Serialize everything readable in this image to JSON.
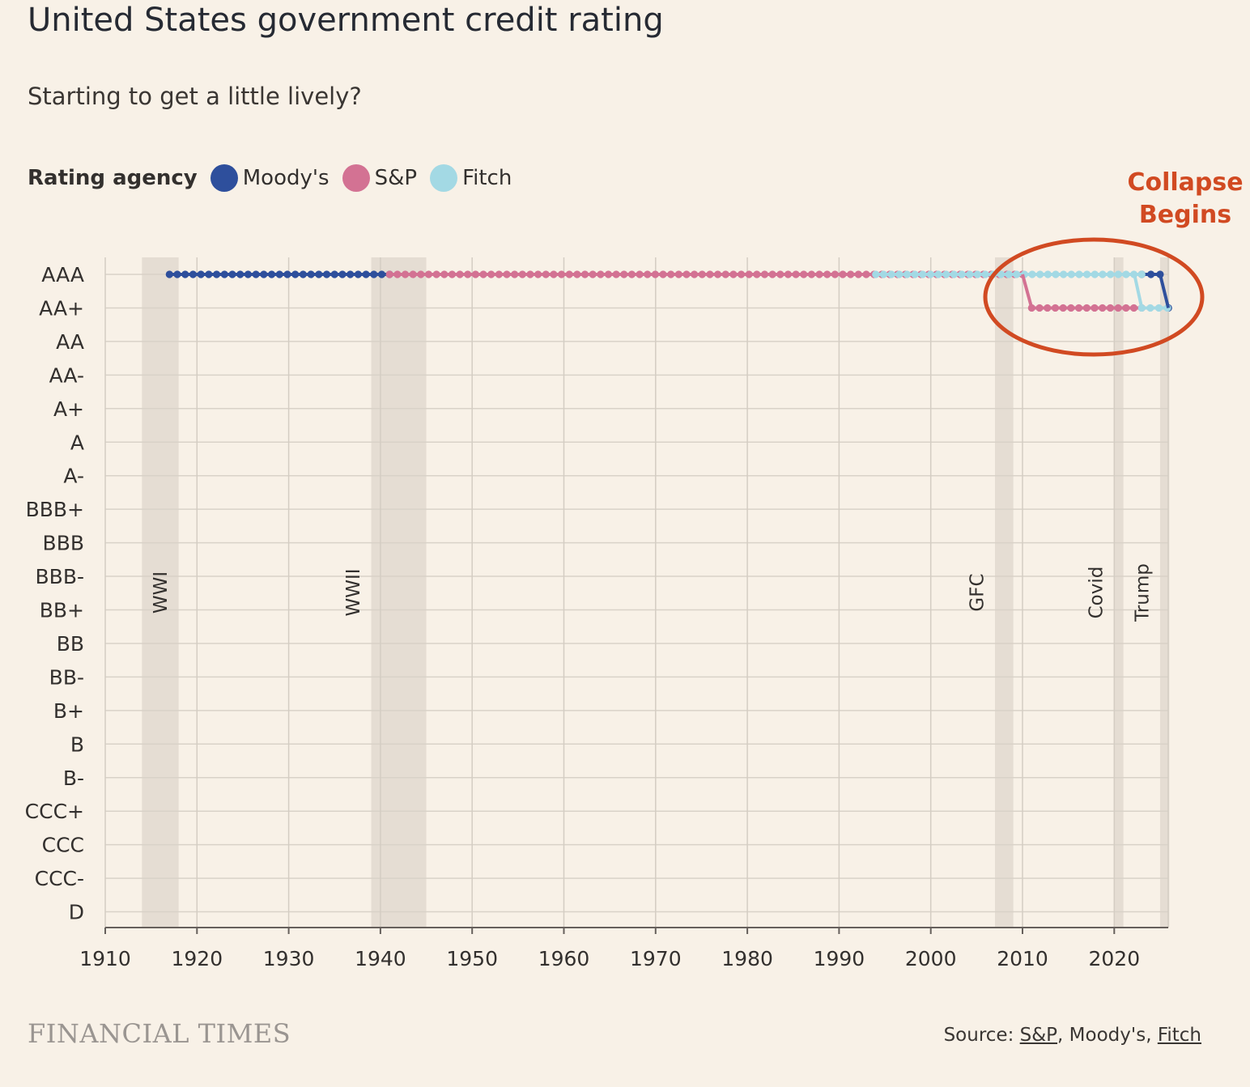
{
  "title": "United States government credit rating",
  "subtitle": "Starting to get a little lively?",
  "legend": {
    "title": "Rating agency",
    "items": [
      {
        "label": "Moody's",
        "color": "#2e4f9c"
      },
      {
        "label": "S&P",
        "color": "#d37293"
      },
      {
        "label": "Fitch",
        "color": "#a3d9e4"
      }
    ]
  },
  "annotation": {
    "line1": "Collapse",
    "line2": "Begins",
    "color": "#d14a22"
  },
  "source": {
    "prefix": "Source: ",
    "sp": "S&P",
    "sep1": ", ",
    "moodys": "Moody's",
    "sep2": ", ",
    "fitch": "Fitch"
  },
  "logo": "FINANCIAL TIMES",
  "chart_data": {
    "type": "line",
    "x_ticks": [
      1910,
      1920,
      1930,
      1940,
      1950,
      1960,
      1970,
      1980,
      1990,
      2000,
      2010,
      2020
    ],
    "xlim": [
      1910,
      2026
    ],
    "y_categories": [
      "AAA",
      "AA+",
      "AA",
      "AA-",
      "A+",
      "A",
      "A-",
      "BBB+",
      "BBB",
      "BBB-",
      "BB+",
      "BB",
      "BB-",
      "B+",
      "B",
      "B-",
      "CCC+",
      "CCC",
      "CCC-",
      "D"
    ],
    "grid": true,
    "shaded_periods": [
      {
        "label": "WWI",
        "start": 1914,
        "end": 1918
      },
      {
        "label": "WWII",
        "start": 1939,
        "end": 1945
      },
      {
        "label": "GFC",
        "start": 2007,
        "end": 2009
      },
      {
        "label": "Covid",
        "start": 2020,
        "end": 2021
      },
      {
        "label": "Trump",
        "start": 2025,
        "end": 2026
      }
    ],
    "series": [
      {
        "name": "Moody's",
        "color": "#2e4f9c",
        "segments": [
          {
            "start": 1917,
            "end": 1941,
            "rating": "AAA"
          },
          {
            "start": 2023,
            "end": 2025,
            "rating": "AAA"
          },
          {
            "start": 2025.9,
            "end": 2025.9,
            "rating": "AA+"
          }
        ]
      },
      {
        "name": "S&P",
        "color": "#d37293",
        "segments": [
          {
            "start": 1941,
            "end": 2010,
            "rating": "AAA"
          },
          {
            "start": 2011,
            "end": 2023,
            "rating": "AA+"
          }
        ]
      },
      {
        "name": "Fitch",
        "color": "#a3d9e4",
        "segments": [
          {
            "start": 1994,
            "end": 2023,
            "rating": "AAA"
          },
          {
            "start": 2023,
            "end": 2025.8,
            "rating": "AA+"
          }
        ]
      }
    ]
  }
}
